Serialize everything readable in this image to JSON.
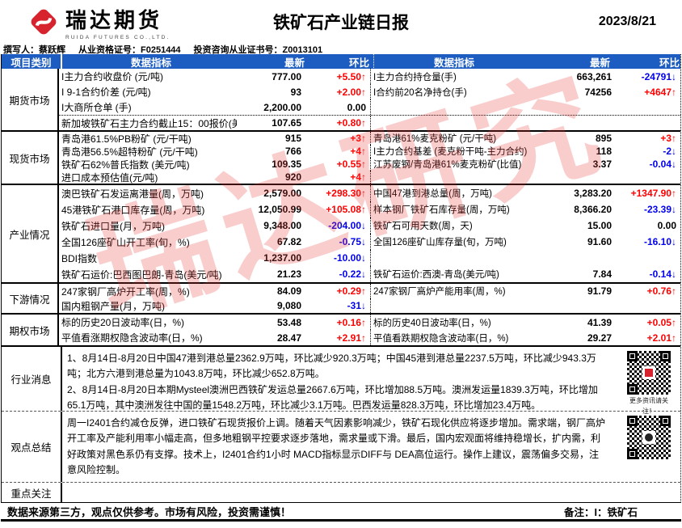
{
  "header": {
    "logo_cn": "瑞达期货",
    "logo_en": "RUIDA FUTURES CO.,LTD.",
    "title": "铁矿石产业链日报",
    "date": "2023/8/21",
    "author": "撰写人：蔡跃辉",
    "qualification": "从业资格证号：F0251444",
    "advisory": "投资咨询从业证书号：Z0013101"
  },
  "table": {
    "columns": {
      "category": "项目类别",
      "indicator": "数据指标",
      "latest": "最新",
      "chg": "环比"
    },
    "sections": [
      {
        "category": "期货市场",
        "rows": [
          {
            "left": {
              "label": "I主力合约收盘价 (元/吨)",
              "value": "777.00",
              "chg": "+5.50↑",
              "dir": "up"
            },
            "right": {
              "label": "I主力合约持仓量(手)",
              "value": "663,261",
              "chg": "-24791↓",
              "dir": "down"
            }
          },
          {
            "left": {
              "label": "I 9-1合约价差 (元/吨)",
              "value": "93",
              "chg": "+2.00↑",
              "dir": "up"
            },
            "right": {
              "label": "I合约前20名净持仓(手)",
              "value": "74256",
              "chg": "+4647↑",
              "dir": "up"
            }
          },
          {
            "left": {
              "label": "I大商所仓单 (手)",
              "value": "2,200.00",
              "chg": "0.00",
              "dir": "flat"
            },
            "right": {
              "label": "",
              "value": "",
              "chg": "",
              "dir": ""
            }
          },
          {
            "left": {
              "label": "新加坡铁矿石主力合约截止15：00报价(美元/吨)",
              "value": "107.65",
              "chg": "+0.80↑",
              "dir": "up"
            },
            "right": {
              "label": "",
              "value": "",
              "chg": "",
              "dir": ""
            }
          }
        ]
      },
      {
        "category": "现货市场",
        "rows": [
          {
            "left": {
              "label": "青岛港61.5%PB粉矿 (元/干吨)",
              "value": "915",
              "chg": "+3↑",
              "dir": "up"
            },
            "right": {
              "label": "青岛港61%麦克粉矿 (元/干吨)",
              "value": "895",
              "chg": "+3↑",
              "dir": "up"
            }
          },
          {
            "left": {
              "label": "青岛港56.5%超特粉矿 (元/干吨)",
              "value": "766",
              "chg": "+4↑",
              "dir": "up"
            },
            "right": {
              "label": "I主力合约基差 (麦克粉干吨-主力合约)",
              "value": "118",
              "chg": "-2↓",
              "dir": "down"
            }
          },
          {
            "left": {
              "label": "铁矿石62%普氏指数 (美元/吨)",
              "value": "109.35",
              "chg": "+0.55↑",
              "dir": "up"
            },
            "right": {
              "label": "江苏废钢/青岛港61%麦克粉矿(比值)",
              "value": "3.37",
              "chg": "-0.04↓",
              "dir": "down"
            }
          },
          {
            "left": {
              "label": "进口成本预估值(元/吨)",
              "value": "920",
              "chg": "+4↑",
              "dir": "up"
            },
            "right": {
              "label": "",
              "value": "",
              "chg": "",
              "dir": ""
            }
          }
        ]
      },
      {
        "category": "产业情况",
        "rows": [
          {
            "left": {
              "label": "澳巴铁矿石发运离港量(周，万吨)",
              "value": "2,579.00",
              "chg": "+298.30↑",
              "dir": "up"
            },
            "right": {
              "label": "中国47港到港总量(周，万吨)",
              "value": "3,283.20",
              "chg": "+1347.90↑",
              "dir": "up"
            }
          },
          {
            "left": {
              "label": "45港铁矿石港口库存量(周，万吨)",
              "value": "12,050.99",
              "chg": "+105.08↑",
              "dir": "up"
            },
            "right": {
              "label": "样本钢厂铁矿石库存量(周，万吨)",
              "value": "8,366.20",
              "chg": "-23.39↓",
              "dir": "down"
            }
          },
          {
            "left": {
              "label": "铁矿石进口量(月，万吨)",
              "value": "9,348.00",
              "chg": "-204.00↓",
              "dir": "down"
            },
            "right": {
              "label": "铁矿石可用天数(周，天)",
              "value": "15.00",
              "chg": "0.00",
              "dir": "flat"
            }
          },
          {
            "left": {
              "label": "全国126座矿山开工率(旬，%)",
              "value": "67.82",
              "chg": "-0.75↓",
              "dir": "down"
            },
            "right": {
              "label": "全国126座矿山库存量(旬，万吨)",
              "value": "91.60",
              "chg": "-16.10↓",
              "dir": "down"
            }
          },
          {
            "left": {
              "label": "BDI指数",
              "value": "1,237.00",
              "chg": "-10.00↓",
              "dir": "down"
            },
            "right": {
              "label": "",
              "value": "",
              "chg": "",
              "dir": ""
            }
          },
          {
            "left": {
              "label": "铁矿石运价:巴西图巴朗-青岛(美元/吨)",
              "value": "21.23",
              "chg": "-0.22↓",
              "dir": "down"
            },
            "right": {
              "label": "铁矿石运价:西澳-青岛(美元/吨)",
              "value": "7.84",
              "chg": "-0.14↓",
              "dir": "down"
            }
          }
        ]
      },
      {
        "category": "下游情况",
        "rows": [
          {
            "left": {
              "label": "247家钢厂高炉开工率(周，%)",
              "value": "84.09",
              "chg": "+0.29↑",
              "dir": "up"
            },
            "right": {
              "label": "247家钢厂高炉产能用率(周，%)",
              "value": "91.79",
              "chg": "+0.76↑",
              "dir": "up"
            }
          },
          {
            "left": {
              "label": "国内粗钢产量(月，万吨)",
              "value": "9,080",
              "chg": "-31↓",
              "dir": "down"
            },
            "right": {
              "label": "",
              "value": "",
              "chg": "",
              "dir": ""
            }
          }
        ]
      },
      {
        "category": "期权市场",
        "rows": [
          {
            "left": {
              "label": "标的历史20日波动率(日，%)",
              "value": "53.48",
              "chg": "+0.16↑",
              "dir": "up"
            },
            "right": {
              "label": "标的历史40日波动率(日，%)",
              "value": "41.39",
              "chg": "+0.05↑",
              "dir": "up"
            }
          },
          {
            "left": {
              "label": "平值看涨期权隐含波动率(日，%)",
              "value": "28.47",
              "chg": "+2.91↑",
              "dir": "up"
            },
            "right": {
              "label": "平值看跌期权隐含波动率(日，%)",
              "value": "29.27",
              "chg": "+2.01↑",
              "dir": "up"
            }
          }
        ]
      }
    ]
  },
  "news": {
    "category": "行业消息",
    "lines": [
      "1、8月14日-8月20日中国47港到港总量2362.9万吨，环比减少920.3万吨；中国45港到港总量2237.5万吨，环比减少943.3万吨；北方六港到港总量为1043.8万吨，环比减少652.8万吨。",
      "2、8月14日-8月20日本期Mysteel澳洲巴西铁矿发运总量2667.6万吨，环比增加88.5万吨。澳洲发运量1839.3万吨，环比增加65.1万吨，其中澳洲发往中国的量1548.2万吨，环比减少3.1万吨。巴西发运量828.3万吨，环比增加23.4万吨。"
    ],
    "qr_caption": "更多资讯请关注！"
  },
  "summary": {
    "category": "观点总结",
    "text": "周一I2401合约减仓反弹，进口铁矿石现货报价上调。随着天气因素影响减少，铁矿石现化供应将逐步增加。需求端，钢厂高炉开工率及产能利用率小幅走高，但多地粗钢平控要求逐步落地，需求量或下滑。最后，国内宏观面将维持稳增长，扩内需，利好政策对黑色系仍有支撑。技术上，I2401合约1小时 MACD指标显示DIFF与 DEA高位运行。操作上建议，震荡偏多交易，注意风险控制。"
  },
  "focus": {
    "category": "重点关注",
    "text": ""
  },
  "footer": {
    "disclaimer": "数据来源第三方，观点仅供参考。市场有风险，投资需谨慎！",
    "note": "备注：I：铁矿石"
  },
  "watermark": "瑞达研究",
  "colors": {
    "header_blue": "#1d5dc2",
    "up_red": "#ff0000",
    "down_blue": "#0000ee",
    "brand_red": "#d7232e"
  }
}
